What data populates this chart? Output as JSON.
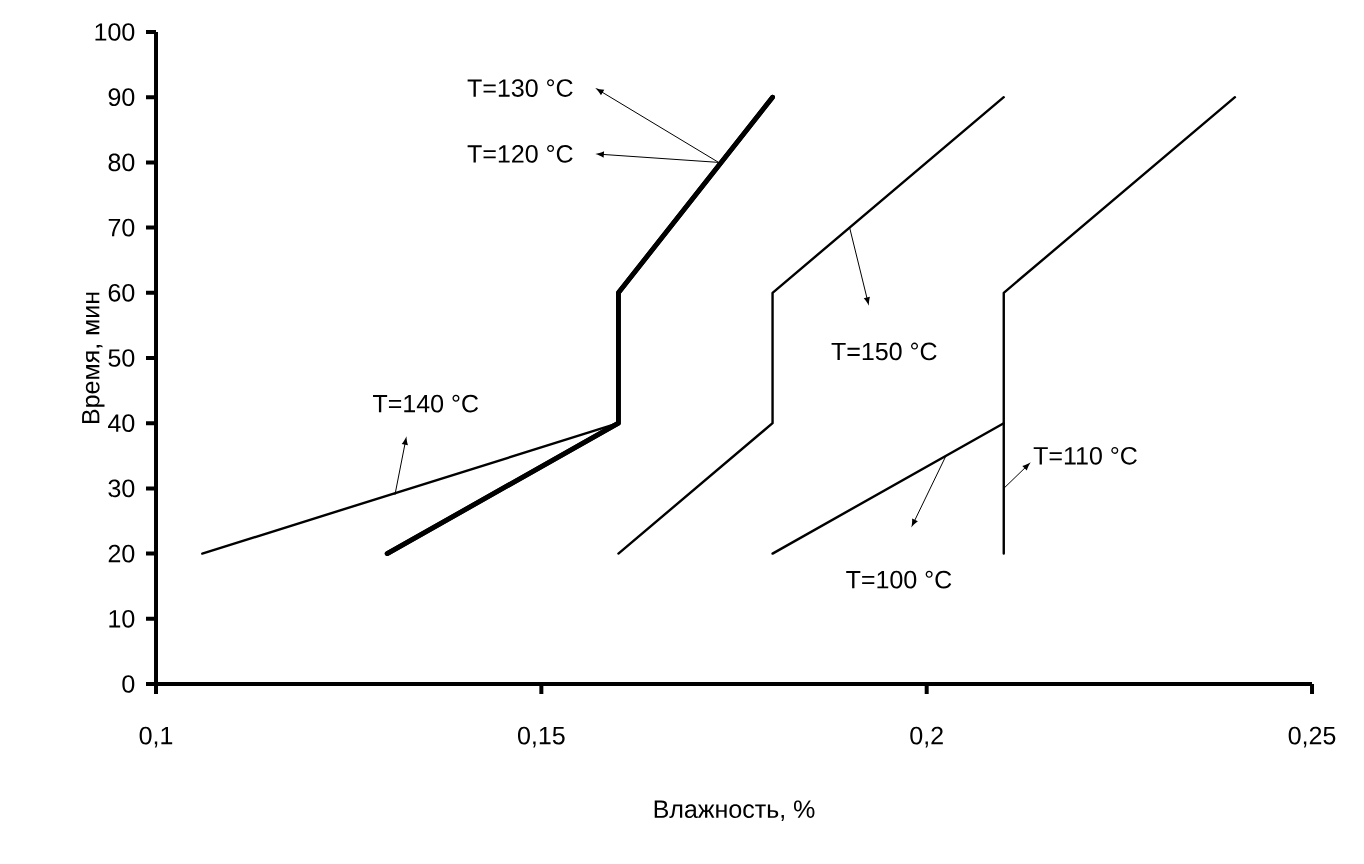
{
  "chart_data": {
    "type": "line",
    "xlabel": "Влажность, %",
    "ylabel": "Время, мин",
    "xlim": [
      0.1,
      0.25
    ],
    "ylim": [
      0,
      100
    ],
    "xticks": [
      {
        "value": 0.1,
        "label": "0,1"
      },
      {
        "value": 0.15,
        "label": "0,15"
      },
      {
        "value": 0.2,
        "label": "0,2"
      },
      {
        "value": 0.25,
        "label": "0,25"
      }
    ],
    "yticks": [
      0,
      10,
      20,
      30,
      40,
      50,
      60,
      70,
      80,
      90,
      100
    ],
    "grid": false,
    "marker": "none",
    "line_style": "solid",
    "series": [
      {
        "color": "#000000",
        "x": [
          0.13,
          0.16,
          0.16,
          0.18
        ],
        "values": [
          20,
          40,
          60,
          90
        ]
      },
      {
        "color": "#000000",
        "x": [
          0.13,
          0.16,
          0.16,
          0.18
        ],
        "values": [
          20,
          40,
          60,
          90
        ]
      },
      {
        "color": "#000000",
        "x": [
          0.106,
          0.16
        ],
        "values": [
          20,
          40
        ]
      },
      {
        "color": "#000000",
        "x": [
          0.16,
          0.18,
          0.18,
          0.21
        ],
        "values": [
          20,
          40,
          60,
          90
        ]
      },
      {
        "color": "#000000",
        "x": [
          0.18,
          0.21
        ],
        "values": [
          20,
          40
        ]
      },
      {
        "color": "#000000",
        "x": [
          0.21,
          0.21,
          0.24
        ],
        "values": [
          20,
          60,
          90
        ]
      }
    ],
    "annotations": [
      {
        "text": "T=130 °C",
        "x": 0.173,
        "y": 80
      },
      "T=120 °C",
      "T=140 °C",
      "T=150 °C",
      "T=100 °C",
      "T=110 °C"
    ]
  }
}
